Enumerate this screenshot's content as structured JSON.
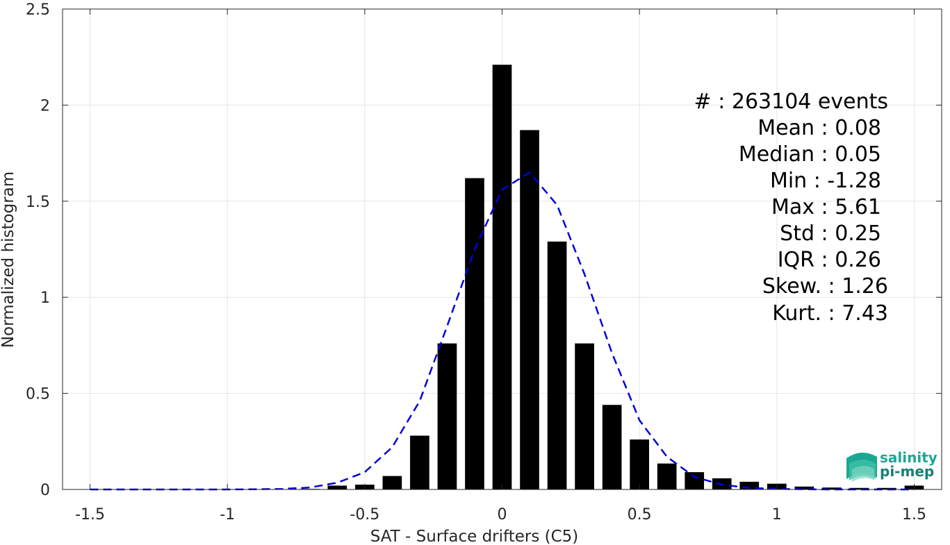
{
  "chart_data": {
    "type": "bar",
    "xlabel": "SAT - Surface drifters (C5)",
    "ylabel": "Normalized histogram",
    "xlim": [
      -1.6,
      1.6
    ],
    "ylim": [
      0,
      2.5
    ],
    "x_ticks": [
      -1.5,
      -1,
      -0.5,
      0,
      0.5,
      1,
      1.5
    ],
    "x_tick_labels": [
      "-1.5",
      "-1",
      "-0.5",
      "0",
      "0.5",
      "1",
      "1.5"
    ],
    "y_ticks": [
      0,
      0.5,
      1,
      1.5,
      2,
      2.5
    ],
    "y_tick_labels": [
      "0",
      "0.5",
      "1",
      "1.5",
      "2",
      "2.5"
    ],
    "grid": true,
    "bar_width": 0.07,
    "bars": {
      "x": [
        -1.5,
        -1.4,
        -1.3,
        -1.2,
        -1.1,
        -1.0,
        -0.9,
        -0.8,
        -0.7,
        -0.6,
        -0.5,
        -0.4,
        -0.3,
        -0.2,
        -0.1,
        0.0,
        0.1,
        0.2,
        0.3,
        0.4,
        0.5,
        0.6,
        0.7,
        0.8,
        0.9,
        1.0,
        1.1,
        1.2,
        1.3,
        1.4,
        1.5
      ],
      "values": [
        0,
        0,
        0,
        0,
        0,
        0,
        0,
        0,
        0.003,
        0.02,
        0.025,
        0.07,
        0.28,
        0.76,
        1.62,
        2.21,
        1.87,
        1.29,
        0.76,
        0.44,
        0.26,
        0.135,
        0.09,
        0.058,
        0.04,
        0.03,
        0.015,
        0.01,
        0.008,
        0.008,
        0.02
      ]
    },
    "fit_curve": {
      "style": "dashed",
      "color": "#0000dd",
      "x": [
        -1.5,
        -1.4,
        -1.3,
        -1.2,
        -1.1,
        -1.0,
        -0.9,
        -0.8,
        -0.7,
        -0.6,
        -0.5,
        -0.4,
        -0.3,
        -0.2,
        -0.1,
        0.0,
        0.1,
        0.2,
        0.3,
        0.4,
        0.5,
        0.6,
        0.7,
        0.8,
        0.9,
        1.0,
        1.1,
        1.2,
        1.3,
        1.4,
        1.5
      ],
      "y": [
        0,
        0,
        0,
        0,
        0,
        0,
        0.001,
        0.003,
        0.01,
        0.035,
        0.09,
        0.22,
        0.46,
        0.85,
        1.25,
        1.56,
        1.65,
        1.48,
        1.12,
        0.71,
        0.36,
        0.17,
        0.065,
        0.025,
        0.008,
        0.003,
        0.001,
        0,
        0,
        0,
        0
      ]
    },
    "annotations": [
      {
        "label": "#  :",
        "value": "263104 events"
      },
      {
        "label": "Mean :",
        "value": "0.08"
      },
      {
        "label": "Median :",
        "value": "0.05"
      },
      {
        "label": "Min :",
        "value": "-1.28"
      },
      {
        "label": "Max :",
        "value": "5.61"
      },
      {
        "label": "Std :",
        "value": "0.25"
      },
      {
        "label": "IQR :",
        "value": "0.26"
      },
      {
        "label": "Skew. :",
        "value": "1.26"
      },
      {
        "label": "Kurt. :",
        "value": "7.43"
      }
    ]
  },
  "logo": {
    "line1": "salinity",
    "line2": "pi-mep",
    "color1": "#1aa893",
    "color2": "#167f75"
  },
  "colors": {
    "bar": "#000000",
    "grid": "#e6e6e6",
    "axis": "#262626"
  }
}
